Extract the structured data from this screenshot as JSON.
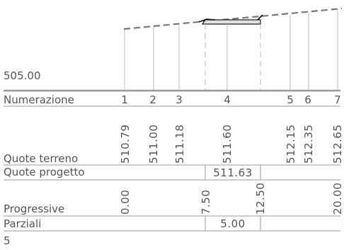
{
  "profile": {
    "datum": "505.00",
    "rows": {
      "numerazione": "Numerazione",
      "quote_terreno": "Quote terreno",
      "quote_progetto": "Quote progetto",
      "progressive": "Progressive",
      "parziali": "Parziali"
    },
    "section_numbers": [
      "1",
      "2",
      "3",
      "4",
      "5",
      "6",
      "7"
    ],
    "ground_elevations": [
      "510.79",
      "511.00",
      "511.18",
      "511.60",
      "512.15",
      "512.35",
      "512.65"
    ],
    "design_elevation": "511.63",
    "progressives": [
      "0.00",
      "7.50",
      "12.50",
      "20.00"
    ],
    "partial_distance": "5.00",
    "footer_value": "5"
  },
  "colors": {
    "line": "#888888",
    "text": "#555555",
    "ground_dash": "#777777",
    "fill": "#e0e0e0"
  }
}
